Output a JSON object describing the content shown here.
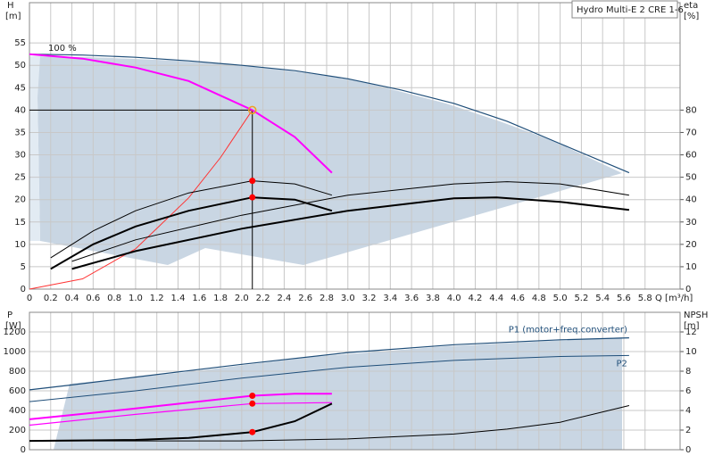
{
  "chart_data": [
    {
      "type": "line",
      "legend_title": "Hydro Multi-E 2 CRE 1-6",
      "y_label": "H",
      "y_unit": "[m]",
      "y2_label": "eta",
      "y2_unit": "[%]",
      "x_label": "Q [m³/h]",
      "curve_label": "100 %",
      "xlim": [
        0,
        6.13
      ],
      "ylim": [
        0,
        64
      ],
      "y2lim": [
        0,
        128
      ],
      "grid": true,
      "xticks": [
        0,
        0.2,
        0.4,
        0.6,
        0.8,
        {
          "value": 1,
          "label": "1.0"
        },
        1.2,
        1.4,
        1.6,
        1.8,
        {
          "value": 2,
          "label": "2.0"
        },
        2.2,
        2.4,
        2.6,
        2.8,
        {
          "value": 3,
          "label": "3.0"
        },
        3.2,
        3.4,
        3.6,
        3.8,
        {
          "value": 4,
          "label": "4.0"
        },
        4.2,
        4.4,
        4.6,
        4.8,
        {
          "value": 5,
          "label": "5.0"
        },
        5.2,
        5.4,
        5.6,
        5.8
      ],
      "yticks": [
        0,
        5,
        10,
        15,
        20,
        25,
        30,
        35,
        40,
        45,
        50,
        55
      ],
      "y2ticks": [
        0,
        10,
        20,
        30,
        40,
        50,
        60,
        70,
        80
      ],
      "operating_point": {
        "x": 2.1,
        "y": 40,
        "color": "#f0a020"
      },
      "series": [
        {
          "color": "#1f4e79",
          "width": 1.2,
          "x": [
            0,
            0.5,
            1,
            1.5,
            2,
            2.5,
            3,
            3.5,
            4,
            4.5,
            5,
            5.65
          ],
          "values": [
            52.5,
            52.3,
            51.8,
            51,
            50,
            48.8,
            47,
            44.5,
            41.5,
            37.5,
            32.5,
            26
          ]
        },
        {
          "color": "#ff00ff",
          "width": 2,
          "x": [
            0,
            0.5,
            1,
            1.5,
            2.1,
            2.5,
            2.85
          ],
          "values": [
            52.5,
            51.5,
            49.5,
            46.5,
            40,
            34,
            26
          ]
        },
        {
          "color": "#ff3333",
          "width": 1,
          "x": [
            0,
            0.5,
            1,
            1.5,
            1.8,
            2.1
          ],
          "values": [
            0,
            2.3,
            9,
            20.4,
            29.4,
            40
          ]
        },
        {
          "color": "#000000",
          "width": 1,
          "axis": "y2",
          "x": [
            0.2,
            0.6,
            1,
            1.5,
            2.1,
            2.5,
            2.85
          ],
          "values": [
            14,
            26,
            35,
            43,
            48.4,
            47,
            42
          ]
        },
        {
          "color": "#000000",
          "width": 2,
          "axis": "y2",
          "x": [
            0.2,
            0.6,
            1,
            1.5,
            2.1,
            2.5,
            2.85
          ],
          "values": [
            9,
            20,
            28,
            35,
            41,
            40,
            35
          ]
        },
        {
          "color": "#000000",
          "width": 1,
          "axis": "y2",
          "x": [
            0.4,
            1,
            2,
            3,
            4,
            4.5,
            5,
            5.65
          ],
          "values": [
            12.4,
            22,
            33,
            42,
            47,
            48,
            47,
            42
          ]
        },
        {
          "color": "#000000",
          "width": 2,
          "axis": "y2",
          "x": [
            0.4,
            1,
            2,
            3,
            4,
            4.4,
            5,
            5.65
          ],
          "values": [
            9,
            17,
            27,
            35,
            40.6,
            41,
            39,
            35.4
          ]
        },
        {
          "type": "scatter",
          "color": "#ff0000",
          "axis": "y2",
          "x": [
            2.1,
            2.1
          ],
          "values": [
            48.4,
            41
          ]
        }
      ]
    },
    {
      "type": "line",
      "y_label": "P",
      "y_unit": "[W]",
      "y2_label": "NPSH",
      "y2_unit": "[m]",
      "xlim": [
        0,
        6.13
      ],
      "ylim": [
        0,
        1400
      ],
      "y2lim": [
        0,
        14
      ],
      "grid": true,
      "xticks": [
        0,
        0.2,
        0.4,
        0.6,
        0.8,
        1,
        1.2,
        1.4,
        1.6,
        1.8,
        2,
        2.2,
        2.4,
        2.6,
        2.8,
        3,
        3.2,
        3.4,
        3.6,
        3.8,
        4,
        4.2,
        4.4,
        4.6,
        4.8,
        5,
        5.2,
        5.4,
        5.6,
        5.8
      ],
      "yticks": [
        0,
        200,
        400,
        600,
        800,
        1000,
        1200
      ],
      "y2ticks": [
        0,
        2,
        4,
        6,
        8,
        10,
        12
      ],
      "series": [
        {
          "name": "P1 (motor+freq.converter)",
          "color": "#1f4e79",
          "width": 1.2,
          "x": [
            0,
            0.4,
            1,
            2,
            3,
            4,
            5,
            5.65
          ],
          "values": [
            610,
            660,
            740,
            870,
            990,
            1070,
            1120,
            1140
          ]
        },
        {
          "name": "P2",
          "color": "#1f4e79",
          "width": 1,
          "x": [
            0,
            1,
            2,
            3,
            4,
            5,
            5.65
          ],
          "values": [
            490,
            600,
            730,
            840,
            910,
            950,
            960
          ]
        },
        {
          "color": "#ff00ff",
          "width": 2,
          "x": [
            0,
            1,
            2.1,
            2.5,
            2.85
          ],
          "values": [
            310,
            420,
            550,
            570,
            570
          ]
        },
        {
          "color": "#ff00ff",
          "width": 1.2,
          "x": [
            0,
            1,
            2.1,
            2.85
          ],
          "values": [
            250,
            360,
            470,
            480
          ]
        },
        {
          "color": "#000000",
          "width": 2,
          "axis": "y2",
          "x": [
            0,
            1,
            1.5,
            2.1,
            2.5,
            2.85
          ],
          "values": [
            0.9,
            1,
            1.2,
            1.8,
            2.9,
            4.7
          ]
        },
        {
          "color": "#000000",
          "width": 1,
          "axis": "y2",
          "x": [
            0,
            2,
            3,
            4,
            4.5,
            5,
            5.65
          ],
          "values": [
            0.9,
            0.9,
            1.1,
            1.6,
            2.1,
            2.8,
            4.5
          ]
        },
        {
          "type": "scatter",
          "color": "#ff0000",
          "x": [
            2.1,
            2.1
          ],
          "values": [
            550,
            470
          ]
        },
        {
          "type": "scatter",
          "color": "#ff0000",
          "axis": "y2",
          "x": [
            2.1
          ],
          "values": [
            1.8
          ]
        }
      ]
    }
  ]
}
